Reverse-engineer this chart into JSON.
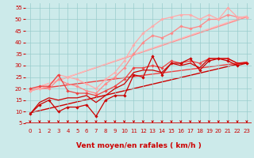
{
  "title": "",
  "xlabel": "Vent moyen/en rafales ( km/h )",
  "bg_color": "#cceaea",
  "grid_color": "#99cccc",
  "x_ticks": [
    0,
    1,
    2,
    3,
    4,
    5,
    6,
    7,
    8,
    9,
    10,
    11,
    12,
    13,
    14,
    15,
    16,
    17,
    18,
    19,
    20,
    21,
    22,
    23
  ],
  "y_ticks": [
    5,
    10,
    15,
    20,
    25,
    30,
    35,
    40,
    45,
    50,
    55
  ],
  "xlim": [
    -0.5,
    23.5
  ],
  "ylim": [
    5,
    57
  ],
  "lines": [
    {
      "x": [
        0,
        1,
        2,
        3,
        4,
        5,
        6,
        7,
        8,
        9,
        10,
        11,
        12,
        13,
        14,
        15,
        16,
        17,
        18,
        19,
        20,
        21,
        22,
        23
      ],
      "y": [
        9,
        13,
        15,
        10,
        12,
        12,
        13,
        8,
        15,
        17,
        17,
        26,
        25,
        34,
        26,
        31,
        31,
        33,
        28,
        32,
        33,
        32,
        30,
        31
      ],
      "color": "#cc0000",
      "lw": 0.9,
      "marker": "D",
      "ms": 1.8,
      "zorder": 5
    },
    {
      "x": [
        0,
        1,
        2,
        3,
        4,
        5,
        6,
        7,
        8,
        9,
        10,
        11,
        12,
        13,
        14,
        15,
        16,
        17,
        18,
        19,
        20,
        21,
        22,
        23
      ],
      "y": [
        9,
        14,
        16,
        15,
        16,
        16,
        17,
        14,
        17,
        20,
        22,
        27,
        28,
        28,
        27,
        31,
        30,
        31,
        29,
        33,
        33,
        33,
        31,
        31
      ],
      "color": "#cc0000",
      "lw": 0.9,
      "marker": null,
      "ms": 0,
      "zorder": 4
    },
    {
      "x": [
        0,
        1,
        2,
        3,
        4,
        5,
        6,
        7,
        8,
        9,
        10,
        11,
        12,
        13,
        14,
        15,
        16,
        17,
        18,
        19,
        20,
        21,
        22,
        23
      ],
      "y": [
        20,
        21,
        21,
        26,
        19,
        18,
        18,
        17,
        19,
        21,
        24,
        29,
        29,
        30,
        29,
        32,
        31,
        32,
        31,
        33,
        33,
        33,
        31,
        31
      ],
      "color": "#ee4444",
      "lw": 0.9,
      "marker": "D",
      "ms": 1.8,
      "zorder": 3
    },
    {
      "x": [
        0,
        1,
        2,
        3,
        4,
        5,
        6,
        7,
        8,
        9,
        10,
        11,
        12,
        13,
        14,
        15,
        16,
        17,
        18,
        19,
        20,
        21,
        22,
        23
      ],
      "y": [
        19,
        20,
        20,
        24,
        22,
        21,
        19,
        18,
        22,
        25,
        29,
        35,
        40,
        43,
        42,
        44,
        47,
        46,
        47,
        50,
        50,
        52,
        51,
        51
      ],
      "color": "#ff8888",
      "lw": 0.9,
      "marker": "D",
      "ms": 1.8,
      "zorder": 2
    },
    {
      "x": [
        0,
        1,
        2,
        3,
        4,
        5,
        6,
        7,
        8,
        9,
        10,
        11,
        12,
        13,
        14,
        15,
        16,
        17,
        18,
        19,
        20,
        21,
        22,
        23
      ],
      "y": [
        19,
        20,
        21,
        26,
        25,
        24,
        22,
        20,
        24,
        27,
        32,
        39,
        44,
        47,
        50,
        51,
        52,
        52,
        50,
        52,
        50,
        55,
        51,
        51
      ],
      "color": "#ffaaaa",
      "lw": 0.9,
      "marker": "D",
      "ms": 1.8,
      "zorder": 2
    },
    {
      "x": [
        0,
        23
      ],
      "y": [
        9.5,
        31.5
      ],
      "color": "#cc0000",
      "lw": 1.0,
      "marker": null,
      "ms": 0,
      "zorder": 1
    },
    {
      "x": [
        0,
        23
      ],
      "y": [
        19.5,
        31.5
      ],
      "color": "#ee4444",
      "lw": 1.0,
      "marker": null,
      "ms": 0,
      "zorder": 1
    },
    {
      "x": [
        0,
        23
      ],
      "y": [
        19.5,
        51.0
      ],
      "color": "#ff8888",
      "lw": 1.0,
      "marker": null,
      "ms": 0,
      "zorder": 1
    },
    {
      "x": [
        0,
        23
      ],
      "y": [
        19.5,
        51.5
      ],
      "color": "#ffbbbb",
      "lw": 1.0,
      "marker": null,
      "ms": 0,
      "zorder": 1
    }
  ],
  "arrow_color": "#cc0000",
  "tick_label_color": "#cc0000",
  "xlabel_color": "#cc0000",
  "xlabel_fontsize": 6.5,
  "tick_fontsize": 5.0
}
